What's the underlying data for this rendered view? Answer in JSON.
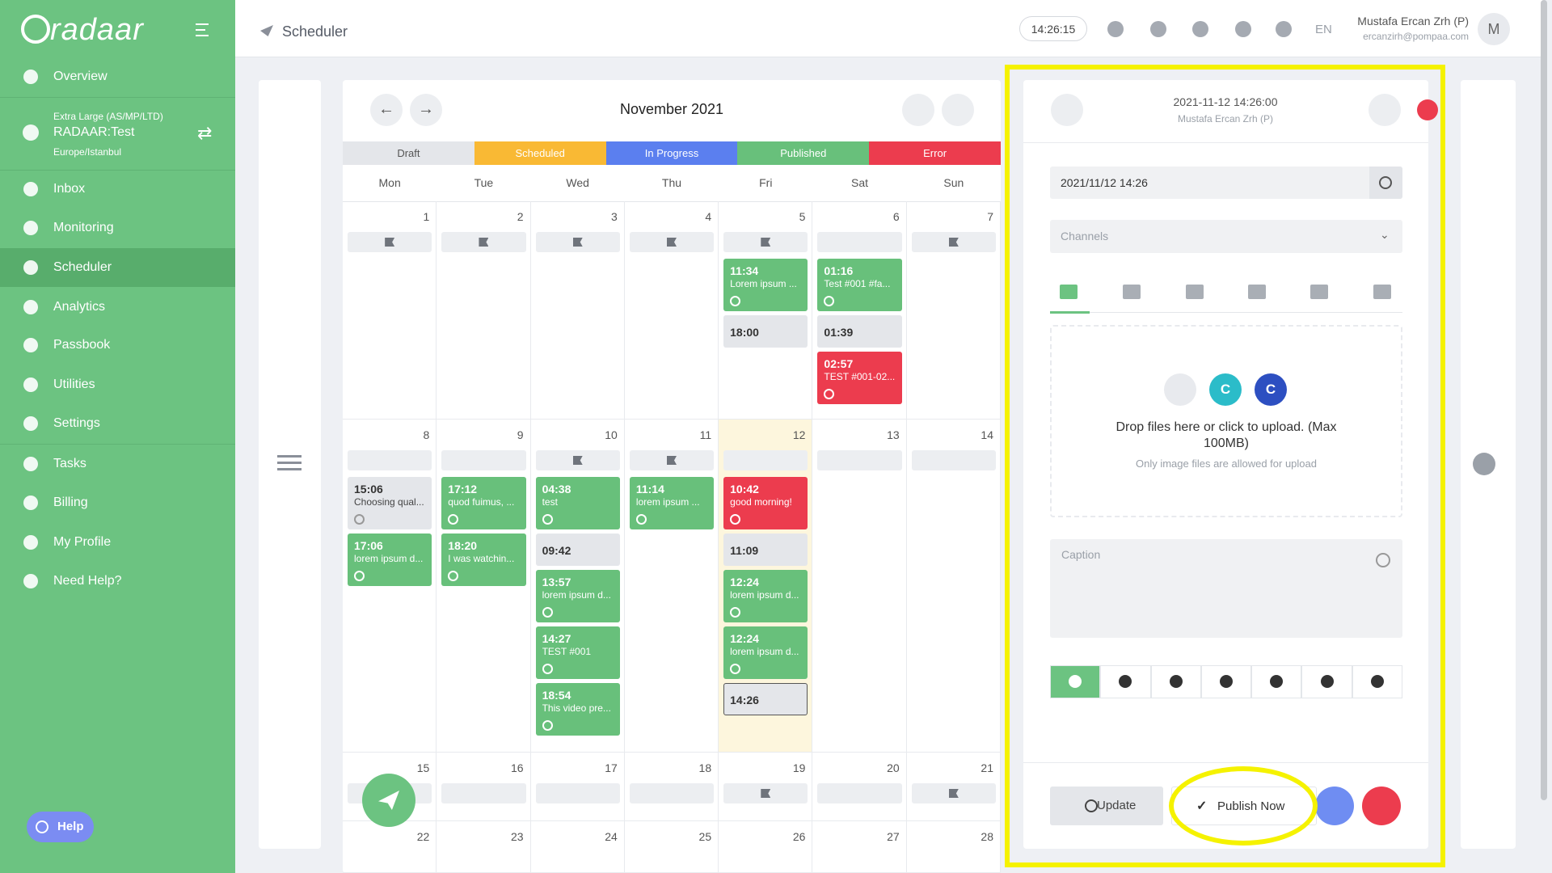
{
  "sidebar": {
    "brand": "radaar",
    "account": {
      "plan": "Extra Large (AS/MP/LTD)",
      "name": "RADAAR:Test",
      "timezone": "Europe/Istanbul"
    },
    "nav": [
      "Overview",
      "Inbox",
      "Monitoring",
      "Scheduler",
      "Analytics",
      "Passbook",
      "Utilities",
      "Settings",
      "Tasks",
      "Billing",
      "My Profile",
      "Need Help?"
    ],
    "active": "Scheduler",
    "help": "Help"
  },
  "header": {
    "title": "Scheduler",
    "clock": "14:26:15",
    "language": "EN",
    "user_name": "Mustafa Ercan Zrh (P)",
    "user_email": "ercanzirh@pompaa.com",
    "avatar": "M"
  },
  "calendar": {
    "month": "November 2021",
    "legend": [
      {
        "label": "Draft",
        "color": "#e4e6ea"
      },
      {
        "label": "Scheduled",
        "color": "#f9b934"
      },
      {
        "label": "In Progress",
        "color": "#5b7fef"
      },
      {
        "label": "Published",
        "color": "#68c07b"
      },
      {
        "label": "Error",
        "color": "#ec3c4e"
      }
    ],
    "weekdays": [
      "Mon",
      "Tue",
      "Wed",
      "Thu",
      "Fri",
      "Sat",
      "Sun"
    ],
    "weeks": [
      [
        {
          "day": 1,
          "flag": true
        },
        {
          "day": 2,
          "flag": true
        },
        {
          "day": 3,
          "flag": true
        },
        {
          "day": 4,
          "flag": true
        },
        {
          "day": 5,
          "flag": true,
          "posts": [
            {
              "time": "11:34",
              "text": "Lorem ipsum ...",
              "status": "Published"
            },
            {
              "time": "18:00",
              "status": "Draft"
            }
          ]
        },
        {
          "day": 6,
          "flag": false,
          "posts": [
            {
              "time": "01:16",
              "text": "Test #001 #fa...",
              "status": "Published"
            },
            {
              "time": "01:39",
              "status": "Draft"
            },
            {
              "time": "02:57",
              "text": "TEST #001-02...",
              "status": "Error"
            }
          ]
        },
        {
          "day": 7,
          "flag": true
        }
      ],
      [
        {
          "day": 8,
          "flag": false,
          "posts": [
            {
              "time": "15:06",
              "text": "Choosing qual...",
              "status": "Draft"
            },
            {
              "time": "17:06",
              "text": "lorem ipsum d...",
              "status": "Published"
            }
          ]
        },
        {
          "day": 9,
          "flag": false,
          "posts": [
            {
              "time": "17:12",
              "text": "quod fuimus, ...",
              "status": "Published"
            },
            {
              "time": "18:20",
              "text": "I was watchin...",
              "status": "Published"
            }
          ]
        },
        {
          "day": 10,
          "flag": true,
          "posts": [
            {
              "time": "04:38",
              "text": "test",
              "status": "Published"
            },
            {
              "time": "09:42",
              "status": "Draft"
            },
            {
              "time": "13:57",
              "text": "lorem ipsum d...",
              "status": "Published"
            },
            {
              "time": "14:27",
              "text": "TEST #001",
              "status": "Published"
            },
            {
              "time": "18:54",
              "text": "This video pre...",
              "status": "Published"
            }
          ]
        },
        {
          "day": 11,
          "flag": true,
          "posts": [
            {
              "time": "11:14",
              "text": "lorem ipsum ...",
              "status": "Published"
            }
          ]
        },
        {
          "day": 12,
          "flag": false,
          "today": true,
          "posts": [
            {
              "time": "10:42",
              "text": "good morning!",
              "status": "Error"
            },
            {
              "time": "11:09",
              "status": "Draft"
            },
            {
              "time": "12:24",
              "text": "lorem ipsum d...",
              "status": "Published"
            },
            {
              "time": "12:24",
              "text": "lorem ipsum d...",
              "status": "Published"
            },
            {
              "time": "14:26",
              "status": "Draft",
              "selected": true
            }
          ]
        },
        {
          "day": 13,
          "flag": false
        },
        {
          "day": 14,
          "flag": false
        }
      ],
      [
        {
          "day": 15,
          "flag": false
        },
        {
          "day": 16,
          "flag": false
        },
        {
          "day": 17,
          "flag": false
        },
        {
          "day": 18,
          "flag": false
        },
        {
          "day": 19,
          "flag": true
        },
        {
          "day": 20,
          "flag": false
        },
        {
          "day": 21,
          "flag": true
        }
      ],
      [
        {
          "day": 22
        },
        {
          "day": 23
        },
        {
          "day": 24
        },
        {
          "day": 25
        },
        {
          "day": 26
        },
        {
          "day": 27
        },
        {
          "day": 28
        }
      ]
    ]
  },
  "editor": {
    "datetime": "2021-11-12 14:26:00",
    "author": "Mustafa Ercan Zrh (P)",
    "date_input": "2021/11/12 14:26",
    "channels": "Channels",
    "upload_badges": [
      "C",
      "C"
    ],
    "upload_text": "Drop files here or click to upload. (Max 100MB)",
    "upload_note": "Only image files are allowed for upload",
    "caption": "Caption",
    "update": "Update",
    "publish": "Publish Now"
  }
}
